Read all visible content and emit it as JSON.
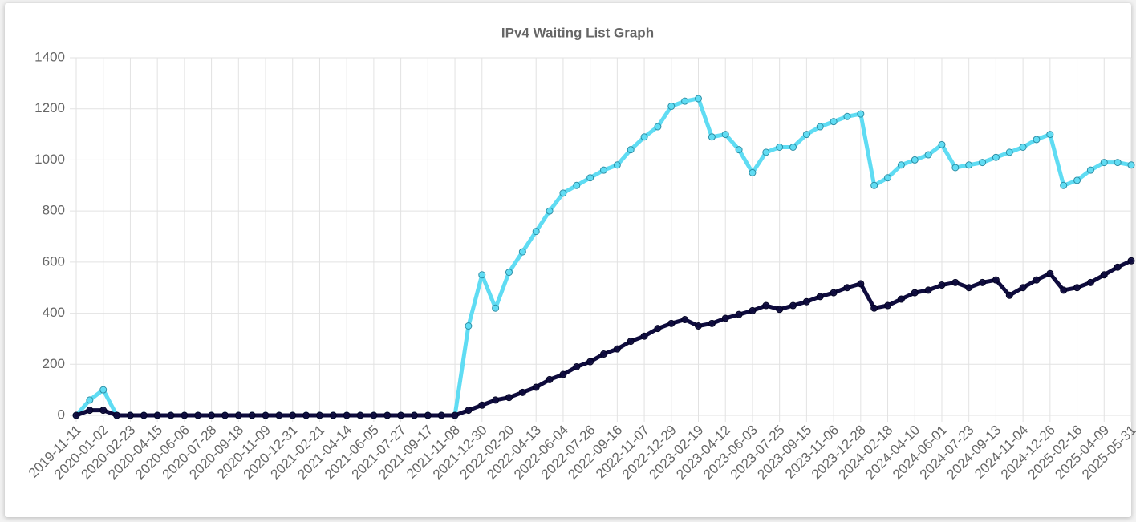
{
  "chart_data": {
    "type": "line",
    "title": "IPv4 Waiting List Graph",
    "categories": [
      "2019-11-11",
      null,
      "2020-01-02",
      null,
      "2020-02-23",
      null,
      "2020-04-15",
      null,
      "2020-06-06",
      null,
      "2020-07-28",
      null,
      "2020-09-18",
      null,
      "2020-11-09",
      null,
      "2020-12-31",
      null,
      "2021-02-21",
      null,
      "2021-04-14",
      null,
      "2021-06-05",
      null,
      "2021-07-27",
      null,
      "2021-09-17",
      null,
      "2021-11-08",
      null,
      "2021-12-30",
      null,
      "2022-02-20",
      null,
      "2022-04-13",
      null,
      "2022-06-04",
      null,
      "2022-07-26",
      null,
      "2022-09-16",
      null,
      "2022-11-07",
      null,
      "2022-12-29",
      null,
      "2023-02-19",
      null,
      "2023-04-12",
      null,
      "2023-06-03",
      null,
      "2023-07-25",
      null,
      "2023-09-15",
      null,
      "2023-11-06",
      null,
      "2023-12-28",
      null,
      "2024-02-18",
      null,
      "2024-04-10",
      null,
      "2024-06-01",
      null,
      "2024-07-23",
      null,
      "2024-09-13",
      null,
      "2024-11-04",
      null,
      "2024-12-26",
      null,
      "2025-02-16",
      null,
      "2025-04-09",
      null,
      "2025-05-31"
    ],
    "series": [
      {
        "color": "#5fdcf3",
        "values": [
          0,
          60,
          100,
          0,
          0,
          0,
          0,
          0,
          0,
          0,
          0,
          0,
          0,
          0,
          0,
          0,
          0,
          0,
          0,
          0,
          0,
          0,
          0,
          0,
          0,
          0,
          0,
          0,
          0,
          350,
          550,
          420,
          560,
          640,
          720,
          800,
          870,
          900,
          930,
          960,
          980,
          1040,
          1090,
          1130,
          1210,
          1230,
          1240,
          1090,
          1100,
          1040,
          950,
          1030,
          1050,
          1050,
          1100,
          1130,
          1150,
          1170,
          1180,
          900,
          930,
          980,
          1000,
          1020,
          1060,
          970,
          980,
          990,
          1010,
          1030,
          1050,
          1080,
          1100,
          900,
          920,
          960,
          990,
          990,
          980
        ]
      },
      {
        "color": "#0e0b3d",
        "values": [
          0,
          20,
          20,
          0,
          0,
          0,
          0,
          0,
          0,
          0,
          0,
          0,
          0,
          0,
          0,
          0,
          0,
          0,
          0,
          0,
          0,
          0,
          0,
          0,
          0,
          0,
          0,
          0,
          0,
          20,
          40,
          60,
          70,
          90,
          110,
          140,
          160,
          190,
          210,
          240,
          260,
          290,
          310,
          340,
          360,
          375,
          350,
          360,
          380,
          395,
          410,
          430,
          415,
          430,
          445,
          465,
          480,
          500,
          515,
          420,
          430,
          455,
          480,
          490,
          510,
          520,
          500,
          520,
          530,
          470,
          500,
          530,
          555,
          490,
          500,
          520,
          550,
          580,
          605
        ]
      }
    ],
    "ylim": [
      0,
      1400
    ],
    "yticks": [
      0,
      200,
      400,
      600,
      800,
      1000,
      1200,
      1400
    ],
    "grid": true
  }
}
